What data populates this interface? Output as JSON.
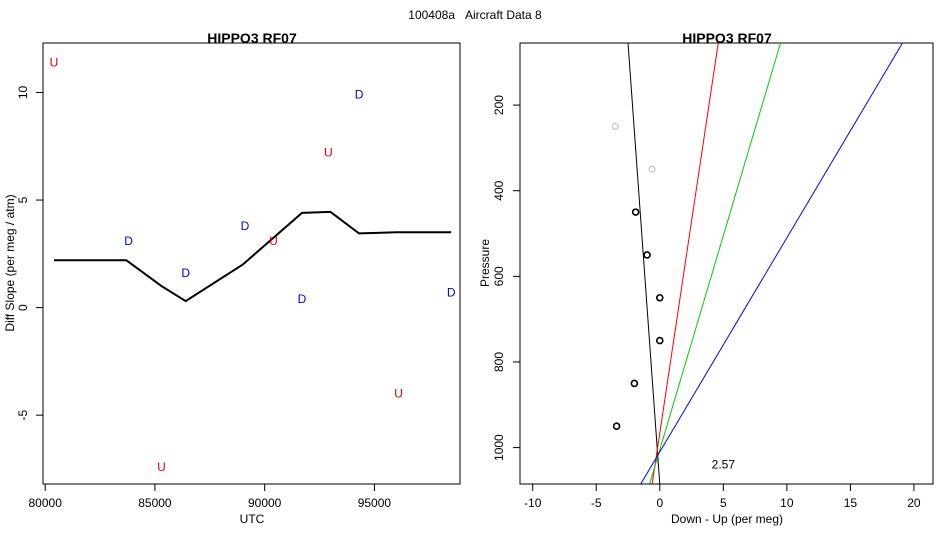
{
  "figure": {
    "suptitle_left": "100408a",
    "suptitle_right": "Aircraft Data 8"
  },
  "chart_data": [
    {
      "type": "scatter",
      "title": "HIPPO3 RF07",
      "xlabel": "UTC",
      "ylabel": "Diff Slope (per meg / atm)",
      "xlim": [
        79900,
        98900
      ],
      "ylim": [
        -8.2,
        12.3
      ],
      "xticks": [
        80000,
        85000,
        90000,
        95000
      ],
      "yticks": [
        -5,
        0,
        5,
        10
      ],
      "line": {
        "color": "#000000",
        "x": [
          80400,
          83700,
          85300,
          86400,
          89000,
          91700,
          93000,
          94300,
          96000,
          98500
        ],
        "y": [
          2.2,
          2.2,
          1.0,
          0.3,
          2.0,
          4.4,
          4.45,
          3.45,
          3.5,
          3.5
        ]
      },
      "series": [
        {
          "name": "U",
          "color": "#dd0000",
          "label": "U",
          "x": [
            80400,
            92900,
            90400,
            96100,
            85300
          ],
          "y": [
            11.4,
            7.2,
            3.1,
            -4.0,
            -7.4
          ]
        },
        {
          "name": "D",
          "color": "#0000dd",
          "label": "D",
          "x": [
            83800,
            94300,
            89100,
            86400,
            91700,
            98500
          ],
          "y": [
            3.1,
            9.9,
            3.8,
            1.6,
            0.4,
            0.7
          ]
        }
      ]
    },
    {
      "type": "scatter",
      "title": "HIPPO3 RF07",
      "xlabel": "Down - Up (per meg)",
      "ylabel": "Pressure",
      "xlim": [
        -11,
        21.5
      ],
      "ylim": [
        1085,
        55
      ],
      "xticks": [
        -10,
        -5,
        0,
        5,
        10,
        15,
        20
      ],
      "yticks": [
        200,
        400,
        600,
        800,
        1000
      ],
      "annotation": {
        "text": "2.57",
        "x": 5,
        "y": 1040
      },
      "points": [
        {
          "x": -3.5,
          "y": 250,
          "color": "#bbbbbb"
        },
        {
          "x": -0.6,
          "y": 350,
          "color": "#bbbbbb"
        },
        {
          "x": -1.9,
          "y": 450,
          "color": "#000000"
        },
        {
          "x": -1.0,
          "y": 550,
          "color": "#000000"
        },
        {
          "x": 0.0,
          "y": 650,
          "color": "#000000"
        },
        {
          "x": 0.0,
          "y": 750,
          "color": "#000000"
        },
        {
          "x": -2.0,
          "y": 850,
          "color": "#000000"
        },
        {
          "x": -3.4,
          "y": 950,
          "color": "#000000"
        }
      ],
      "lines": [
        {
          "name": "black-fit",
          "color": "#000000",
          "x": [
            -2.5,
            0.0
          ],
          "y": [
            55,
            1085
          ]
        },
        {
          "name": "red-fit",
          "color": "#ff0000",
          "x": [
            4.6,
            -0.6
          ],
          "y": [
            55,
            1085
          ]
        },
        {
          "name": "green-fit",
          "color": "#00cc00",
          "x": [
            9.5,
            -0.8
          ],
          "y": [
            55,
            1085
          ]
        },
        {
          "name": "blue-fit",
          "color": "#0000ff",
          "x": [
            19.1,
            -1.5
          ],
          "y": [
            55,
            1085
          ]
        }
      ]
    }
  ]
}
